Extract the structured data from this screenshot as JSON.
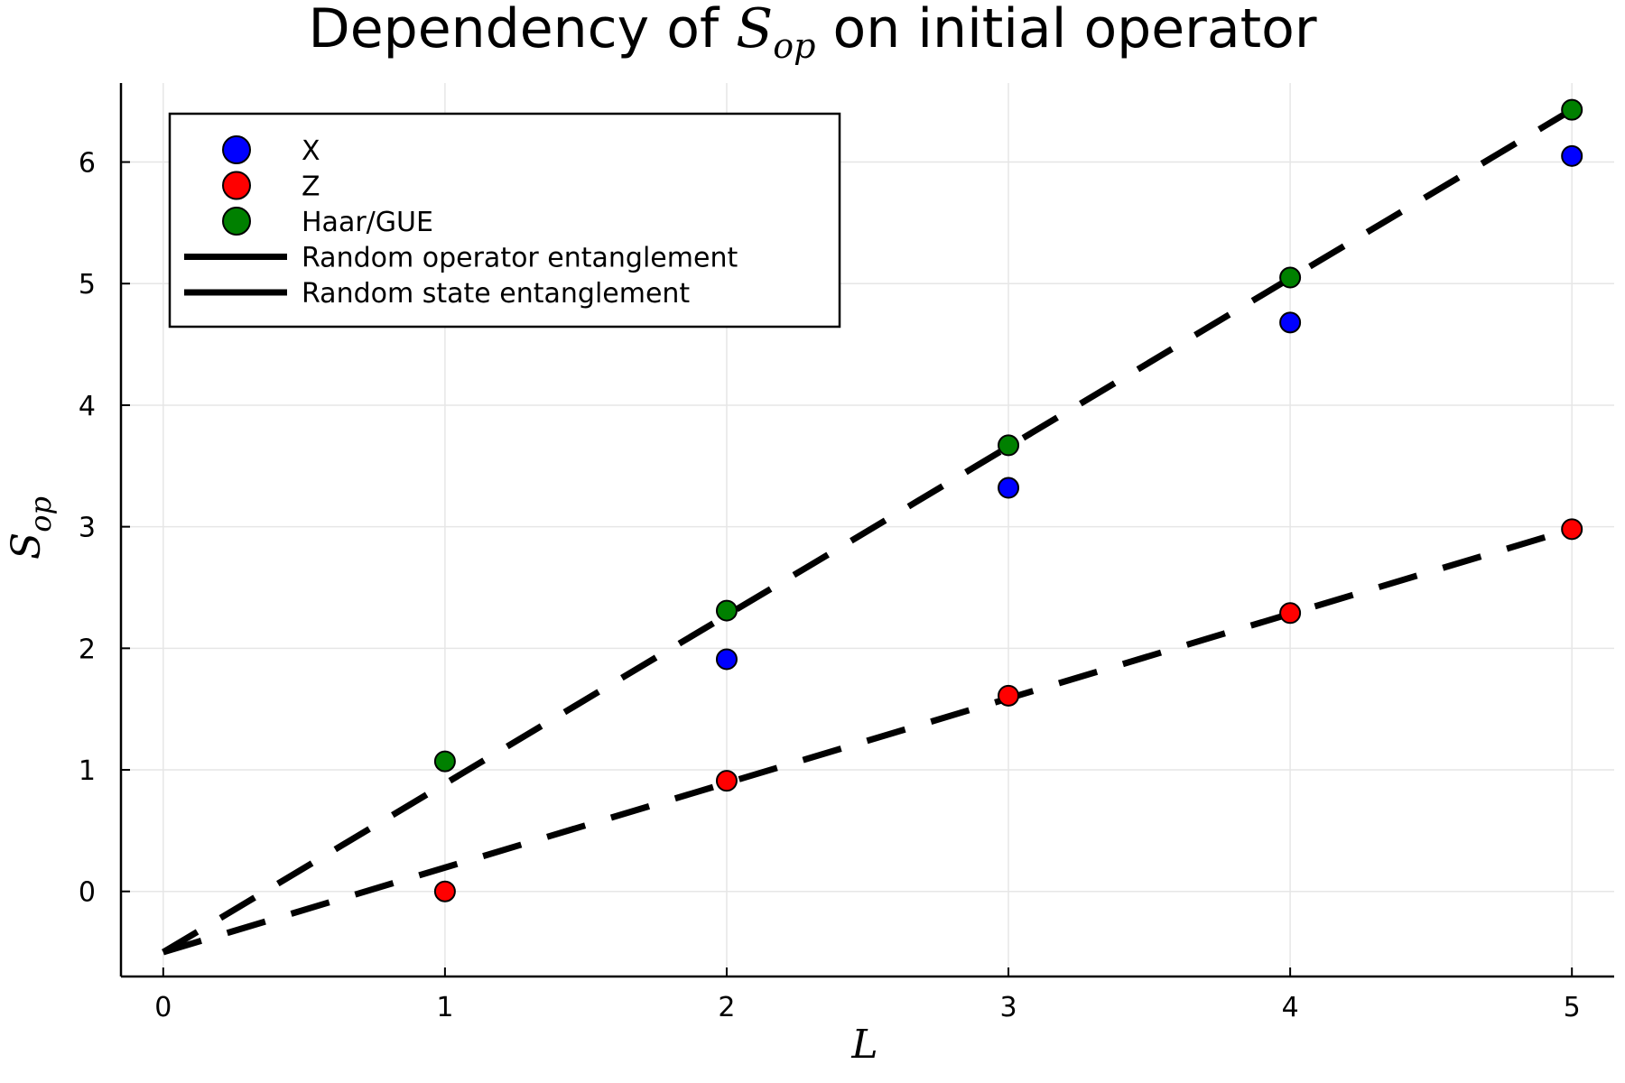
{
  "chart_data": {
    "type": "scatter",
    "title": {
      "prefix": "Dependency of ",
      "math_base": "S",
      "math_sub": "op",
      "suffix": " on initial operator"
    },
    "xlabel": "L",
    "ylabel": {
      "base": "S",
      "sub": "op"
    },
    "xlim": [
      -0.15,
      5.15
    ],
    "ylim": [
      -0.7,
      6.65
    ],
    "xticks": [
      0,
      1,
      2,
      3,
      4,
      5
    ],
    "yticks": [
      0,
      1,
      2,
      3,
      4,
      5,
      6
    ],
    "grid": true,
    "legend_position": "top-left",
    "series": [
      {
        "name": "X",
        "kind": "scatter",
        "color": "#0000ff",
        "x": [
          2,
          3,
          4,
          5
        ],
        "y": [
          1.91,
          3.32,
          4.68,
          6.05
        ]
      },
      {
        "name": "Z",
        "kind": "scatter",
        "color": "#ff0000",
        "x": [
          1,
          2,
          3,
          4,
          5
        ],
        "y": [
          0.0,
          0.91,
          1.61,
          2.29,
          2.98
        ]
      },
      {
        "name": "Haar/GUE",
        "kind": "scatter",
        "color": "#008000",
        "x": [
          1,
          2,
          3,
          4,
          5
        ],
        "y": [
          1.07,
          2.31,
          3.67,
          5.05,
          6.43
        ]
      },
      {
        "name": "Random operator entanglement",
        "kind": "line",
        "color": "#000000",
        "dashed": true,
        "x": [
          0,
          5
        ],
        "y": [
          -0.5,
          6.43
        ]
      },
      {
        "name": "Random state entanglement",
        "kind": "line",
        "color": "#000000",
        "dashed": true,
        "x": [
          0,
          5
        ],
        "y": [
          -0.5,
          2.98
        ]
      }
    ]
  }
}
